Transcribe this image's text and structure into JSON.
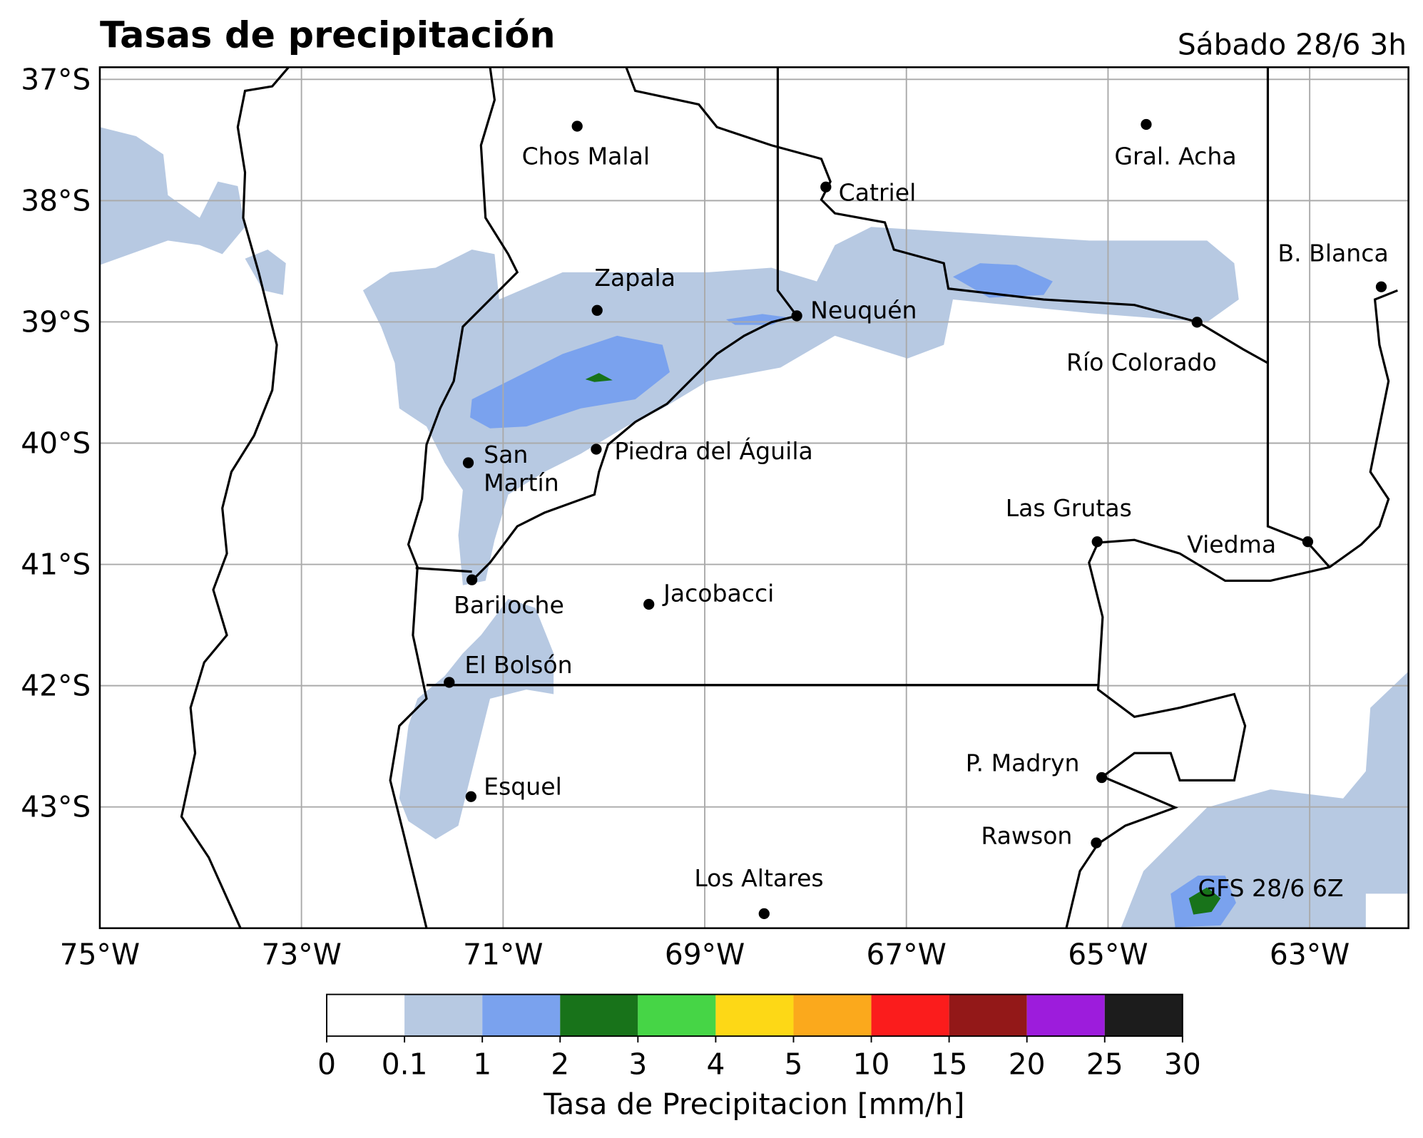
{
  "map": {
    "title": "Tasas de precipitación",
    "subtitle": "Sábado 28/6 3h",
    "annotation": "GFS 28/6 6Z",
    "xlim": [
      -75,
      -62.02
    ],
    "ylim": [
      -44,
      -36.9
    ],
    "xticks": [
      {
        "value": -75,
        "label": "75°W"
      },
      {
        "value": -73,
        "label": "73°W"
      },
      {
        "value": -71,
        "label": "71°W"
      },
      {
        "value": -69,
        "label": "69°W"
      },
      {
        "value": -67,
        "label": "67°W"
      },
      {
        "value": -65,
        "label": "65°W"
      },
      {
        "value": -63,
        "label": "63°W"
      }
    ],
    "yticks": [
      {
        "value": -37,
        "label": "37°S"
      },
      {
        "value": -38,
        "label": "38°S"
      },
      {
        "value": -39,
        "label": "39°S"
      },
      {
        "value": -40,
        "label": "40°S"
      },
      {
        "value": -41,
        "label": "41°S"
      },
      {
        "value": -42,
        "label": "42°S"
      },
      {
        "value": -43,
        "label": "43°S"
      }
    ],
    "cities": [
      "Chos Malal",
      "Gral. Acha",
      "Catriel",
      "B. Blanca",
      "Zapala",
      "Neuquén",
      "Río Colorado",
      "San Martín",
      "Piedra del Águila",
      "Las Grutas",
      "Viedma",
      "Bariloche",
      "Jacobacci",
      "El Bolsón",
      "P. Madryn",
      "Esquel",
      "Rawson",
      "Los Altares"
    ]
  },
  "colorbar": {
    "label": "Tasa de Precipitacion [mm/h]",
    "ticks": [
      0,
      0.1,
      1,
      2,
      3,
      4,
      5,
      10,
      15,
      20,
      25,
      30
    ],
    "colors": [
      "#ffffff",
      "#b7c9e2",
      "#7aa2ee",
      "#18731a",
      "#46d546",
      "#fdd816",
      "#fba91c",
      "#fb1c1c",
      "#931818",
      "#9d1cdc",
      "#1c1c1c"
    ]
  }
}
